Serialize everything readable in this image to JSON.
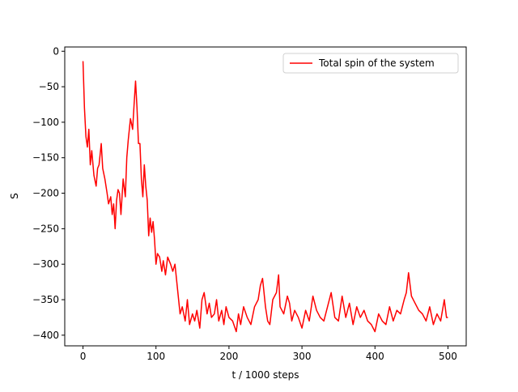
{
  "chart_data": {
    "type": "line",
    "xlabel": "t / 1000 steps",
    "ylabel": "S",
    "legend": "upper right",
    "xlim": [
      -25,
      525
    ],
    "ylim": [
      -415,
      6
    ],
    "xticks": [
      0,
      100,
      200,
      300,
      400,
      500
    ],
    "yticks": [
      0,
      {
        "value": -50,
        "label": "−50"
      },
      {
        "value": -100,
        "label": "−100"
      },
      {
        "value": -150,
        "label": "−150"
      },
      {
        "value": -200,
        "label": "−200"
      },
      {
        "value": -250,
        "label": "−250"
      },
      {
        "value": -300,
        "label": "−300"
      },
      {
        "value": -350,
        "label": "−350"
      },
      {
        "value": -400,
        "label": "−400"
      }
    ],
    "x": [
      0,
      2,
      4,
      6,
      8,
      10,
      12,
      15,
      18,
      20,
      22,
      25,
      27,
      30,
      33,
      35,
      38,
      40,
      42,
      44,
      46,
      48,
      50,
      52,
      55,
      58,
      60,
      62,
      65,
      68,
      70,
      72,
      74,
      76,
      78,
      80,
      82,
      84,
      86,
      88,
      90,
      92,
      94,
      96,
      98,
      100,
      102,
      105,
      108,
      110,
      113,
      116,
      120,
      123,
      126,
      130,
      133,
      136,
      140,
      143,
      146,
      150,
      153,
      156,
      160,
      163,
      166,
      170,
      173,
      176,
      180,
      183,
      186,
      190,
      193,
      196,
      200,
      205,
      210,
      213,
      216,
      220,
      225,
      230,
      235,
      240,
      243,
      246,
      250,
      253,
      256,
      260,
      265,
      268,
      270,
      275,
      280,
      283,
      286,
      290,
      295,
      300,
      305,
      310,
      315,
      320,
      325,
      330,
      335,
      340,
      345,
      350,
      355,
      360,
      365,
      370,
      375,
      380,
      385,
      390,
      395,
      400,
      405,
      410,
      415,
      420,
      425,
      430,
      435,
      440,
      443,
      446,
      450,
      455,
      460,
      465,
      470,
      475,
      480,
      485,
      490,
      495,
      498,
      500
    ],
    "series": [
      {
        "name": "Total spin of the system",
        "color": "#ff0000",
        "values": [
          -14,
          -80,
          -120,
          -135,
          -110,
          -160,
          -140,
          -175,
          -190,
          -165,
          -160,
          -130,
          -165,
          -180,
          -200,
          -215,
          -205,
          -230,
          -215,
          -250,
          -210,
          -195,
          -200,
          -230,
          -180,
          -205,
          -150,
          -125,
          -95,
          -110,
          -75,
          -42,
          -80,
          -130,
          -130,
          -180,
          -205,
          -160,
          -190,
          -210,
          -260,
          -235,
          -255,
          -240,
          -265,
          -300,
          -285,
          -290,
          -310,
          -295,
          -315,
          -290,
          -300,
          -310,
          -300,
          -340,
          -370,
          -360,
          -380,
          -350,
          -385,
          -370,
          -380,
          -365,
          -390,
          -350,
          -340,
          -370,
          -355,
          -375,
          -370,
          -350,
          -380,
          -365,
          -385,
          -360,
          -375,
          -380,
          -395,
          -370,
          -385,
          -360,
          -375,
          -385,
          -360,
          -350,
          -330,
          -320,
          -360,
          -380,
          -385,
          -350,
          -340,
          -315,
          -360,
          -370,
          -345,
          -355,
          -380,
          -365,
          -375,
          -390,
          -365,
          -380,
          -345,
          -365,
          -375,
          -380,
          -360,
          -340,
          -375,
          -380,
          -345,
          -375,
          -355,
          -385,
          -360,
          -375,
          -365,
          -380,
          -385,
          -395,
          -370,
          -380,
          -385,
          -360,
          -380,
          -365,
          -370,
          -350,
          -340,
          -312,
          -345,
          -355,
          -365,
          -370,
          -380,
          -360,
          -385,
          -370,
          -380,
          -350,
          -375,
          -375
        ]
      }
    ]
  }
}
